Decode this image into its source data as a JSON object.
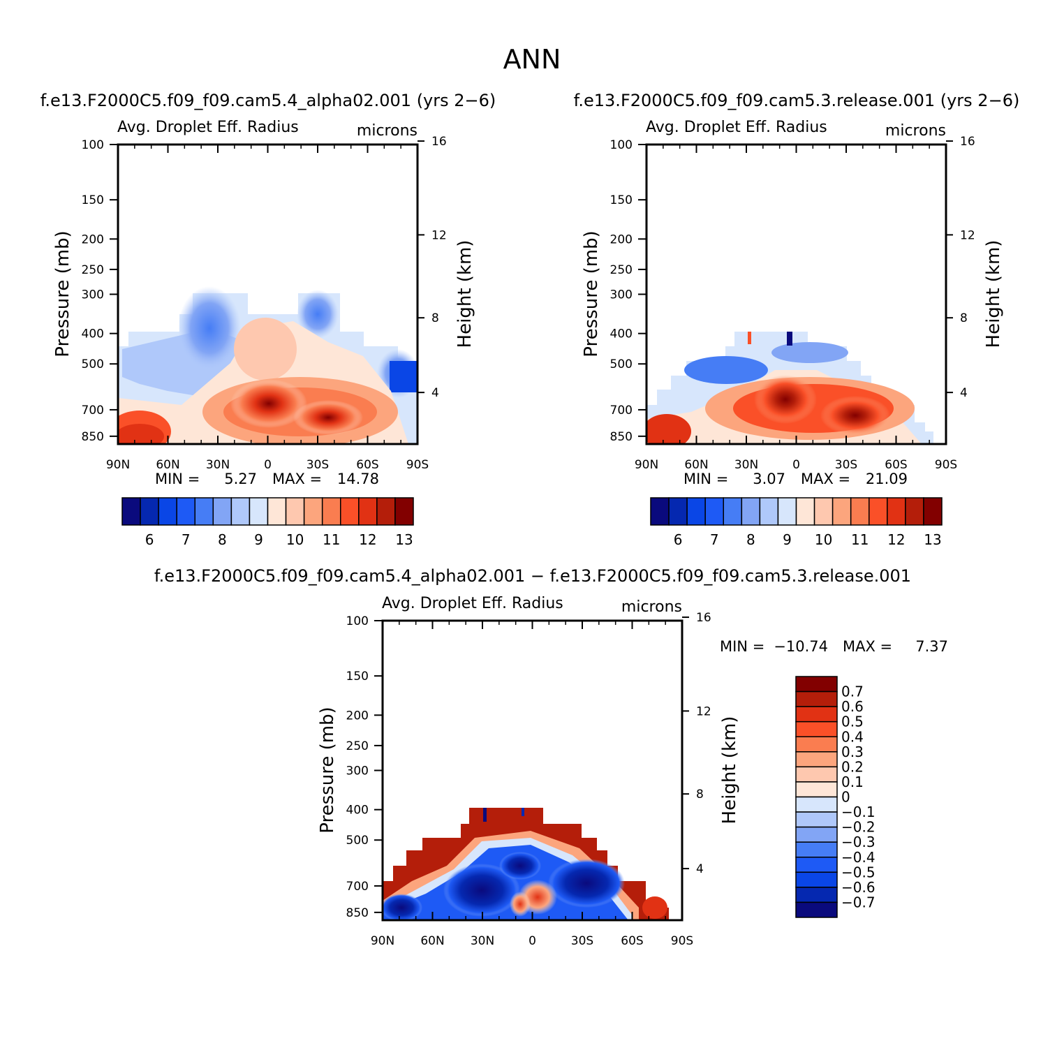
{
  "figure_title": "ANN",
  "colors": {
    "abs_levels": [
      "#0a0a7d",
      "#0528b0",
      "#0a46e6",
      "#1e5af5",
      "#467df5",
      "#82a5f5",
      "#afc8fa",
      "#d7e6fc",
      "#fee6d7",
      "#fec8af",
      "#fca57d",
      "#fa7d50",
      "#fa5028",
      "#e13214",
      "#b41e0a",
      "#820000"
    ],
    "diff_levels": [
      "#0a0a7d",
      "#0528b0",
      "#0a46e6",
      "#1e5af5",
      "#467df5",
      "#82a5f5",
      "#afc8fa",
      "#d7e6fc",
      "#fee6d7",
      "#fec8af",
      "#fca57d",
      "#fa7d50",
      "#fa5028",
      "#e13214",
      "#b41e0a",
      "#820000"
    ]
  },
  "chart_data": [
    {
      "type": "heatmap",
      "title": "f.e13.F2000C5.f09_f09.cam5.4_alpha02.001 (yrs 2−6)",
      "variable": "Avg. Droplet Eff. Radius",
      "units": "microns",
      "ylabel": "Pressure (mb)",
      "y2label": "Height (km)",
      "x_ticks": [
        "90N",
        "60N",
        "30N",
        "0",
        "30S",
        "60S",
        "90S"
      ],
      "y_ticks": [
        "100",
        "150",
        "200",
        "250",
        "300",
        "400",
        "500",
        "700",
        "850"
      ],
      "y2_ticks": [
        "16",
        "12",
        "8",
        "4"
      ],
      "y_scale": "log",
      "y_range_mb": [
        100,
        900
      ],
      "min_label": "MIN =",
      "min": "5.27",
      "max_label": "MAX =",
      "max": "14.78",
      "colorbar_ticks": [
        "6",
        "7",
        "8",
        "9",
        "10",
        "11",
        "12",
        "13"
      ],
      "data_region_top_mb": 300
    },
    {
      "type": "heatmap",
      "title": "f.e13.F2000C5.f09_f09.cam5.3.release.001 (yrs 2−6)",
      "variable": "Avg. Droplet Eff. Radius",
      "units": "microns",
      "ylabel": "Pressure (mb)",
      "y2label": "Height (km)",
      "x_ticks": [
        "90N",
        "60N",
        "30N",
        "0",
        "30S",
        "60S",
        "90S"
      ],
      "y_ticks": [
        "100",
        "150",
        "200",
        "250",
        "300",
        "400",
        "500",
        "700",
        "850"
      ],
      "y2_ticks": [
        "16",
        "12",
        "8",
        "4"
      ],
      "y_scale": "log",
      "y_range_mb": [
        100,
        900
      ],
      "min_label": "MIN =",
      "min": "3.07",
      "max_label": "MAX =",
      "max": "21.09",
      "colorbar_ticks": [
        "6",
        "7",
        "8",
        "9",
        "10",
        "11",
        "12",
        "13"
      ],
      "data_region_top_mb": 400
    },
    {
      "type": "heatmap",
      "title": "f.e13.F2000C5.f09_f09.cam5.4_alpha02.001 − f.e13.F2000C5.f09_f09.cam5.3.release.001",
      "variable": "Avg. Droplet Eff. Radius",
      "units": "microns",
      "ylabel": "Pressure (mb)",
      "y2label": "Height (km)",
      "x_ticks": [
        "90N",
        "60N",
        "30N",
        "0",
        "30S",
        "60S",
        "90S"
      ],
      "y_ticks": [
        "100",
        "150",
        "200",
        "250",
        "300",
        "400",
        "500",
        "700",
        "850"
      ],
      "y2_ticks": [
        "16",
        "12",
        "8",
        "4"
      ],
      "y_scale": "log",
      "y_range_mb": [
        100,
        900
      ],
      "min_label": "MIN =",
      "min": "−10.74",
      "max_label": "MAX =",
      "max": "7.37",
      "colorbar_ticks": [
        "0.7",
        "0.6",
        "0.5",
        "0.4",
        "0.3",
        "0.2",
        "0.1",
        "0",
        "−0.1",
        "−0.2",
        "−0.3",
        "−0.4",
        "−0.5",
        "−0.6",
        "−0.7"
      ],
      "data_region_top_mb": 400
    }
  ]
}
